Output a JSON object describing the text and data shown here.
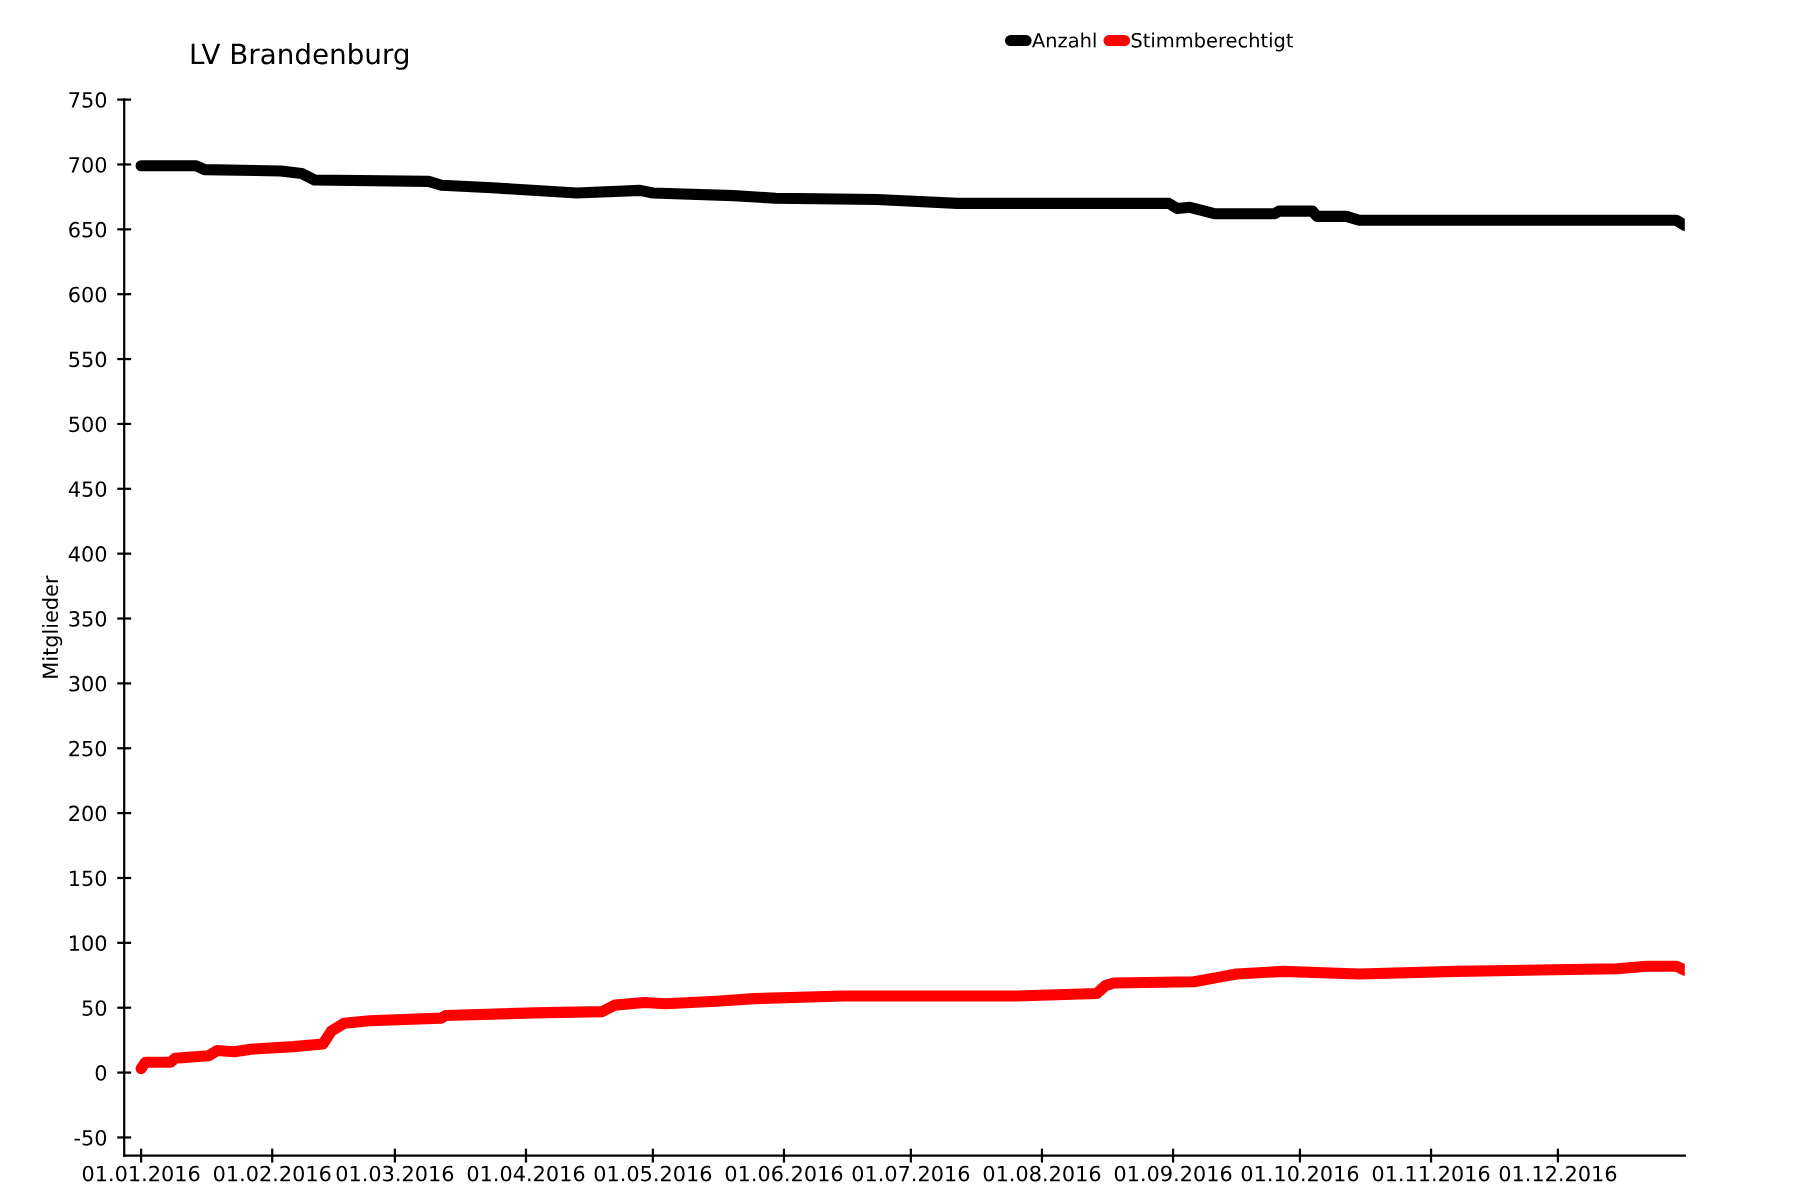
{
  "chart_data": {
    "type": "line",
    "title": "LV Brandenburg",
    "ylabel": "Mitglieder",
    "xlim": [
      "2015-12-28",
      "2016-12-31"
    ],
    "xticks": [
      {
        "value": "2016-01-01",
        "label": "01.01.2016"
      },
      {
        "value": "2016-02-01",
        "label": "01.02.2016"
      },
      {
        "value": "2016-03-01",
        "label": "01.03.2016"
      },
      {
        "value": "2016-04-01",
        "label": "01.04.2016"
      },
      {
        "value": "2016-05-01",
        "label": "01.05.2016"
      },
      {
        "value": "2016-06-01",
        "label": "01.06.2016"
      },
      {
        "value": "2016-07-01",
        "label": "01.07.2016"
      },
      {
        "value": "2016-08-01",
        "label": "01.08.2016"
      },
      {
        "value": "2016-09-01",
        "label": "01.09.2016"
      },
      {
        "value": "2016-10-01",
        "label": "01.10.2016"
      },
      {
        "value": "2016-11-01",
        "label": "01.11.2016"
      },
      {
        "value": "2016-12-01",
        "label": "01.12.2016"
      }
    ],
    "ylim": [
      -64,
      750
    ],
    "yticks": [
      -50,
      0,
      50,
      100,
      150,
      200,
      250,
      300,
      350,
      400,
      450,
      500,
      550,
      600,
      650,
      700,
      750
    ],
    "grid": false,
    "legend": "top",
    "line_style": "solid",
    "series": [
      {
        "name": "Anzahl",
        "color": "#000000",
        "x": [
          "2016-01-01",
          "2016-01-14",
          "2016-01-16",
          "2016-02-03",
          "2016-02-08",
          "2016-02-11",
          "2016-03-09",
          "2016-03-12",
          "2016-03-24",
          "2016-04-13",
          "2016-04-28",
          "2016-05-01",
          "2016-05-20",
          "2016-05-30",
          "2016-06-23",
          "2016-07-12",
          "2016-08-31",
          "2016-09-02",
          "2016-09-05",
          "2016-09-11",
          "2016-09-25",
          "2016-09-26",
          "2016-10-04",
          "2016-10-05",
          "2016-10-12",
          "2016-10-15",
          "2016-12-29",
          "2016-12-31"
        ],
        "values": [
          699,
          699,
          696,
          695,
          693,
          688,
          687,
          684,
          682,
          678,
          680,
          678,
          676,
          674,
          673,
          670,
          670,
          666,
          667,
          662,
          662,
          664,
          664,
          660,
          660,
          657,
          657,
          653
        ]
      },
      {
        "name": "Stimmberechtigt",
        "color": "#ff0000",
        "x": [
          "2016-01-01",
          "2016-01-02",
          "2016-01-08",
          "2016-01-09",
          "2016-01-17",
          "2016-01-19",
          "2016-01-23",
          "2016-01-27",
          "2016-02-06",
          "2016-02-13",
          "2016-02-15",
          "2016-02-18",
          "2016-02-24",
          "2016-03-12",
          "2016-03-13",
          "2016-04-03",
          "2016-04-19",
          "2016-04-22",
          "2016-04-29",
          "2016-05-04",
          "2016-05-16",
          "2016-05-25",
          "2016-06-15",
          "2016-07-26",
          "2016-08-14",
          "2016-08-16",
          "2016-08-18",
          "2016-09-06",
          "2016-09-11",
          "2016-09-16",
          "2016-09-27",
          "2016-10-15",
          "2016-11-07",
          "2016-12-15",
          "2016-12-22",
          "2016-12-29",
          "2016-12-31"
        ],
        "values": [
          3,
          8,
          8,
          11,
          13,
          17,
          16,
          18,
          20,
          22,
          32,
          38,
          40,
          42,
          44,
          46,
          47,
          52,
          54,
          53,
          55,
          57,
          59,
          59,
          61,
          67,
          69,
          70,
          73,
          76,
          78,
          76,
          78,
          80,
          82,
          82,
          79
        ]
      }
    ]
  }
}
